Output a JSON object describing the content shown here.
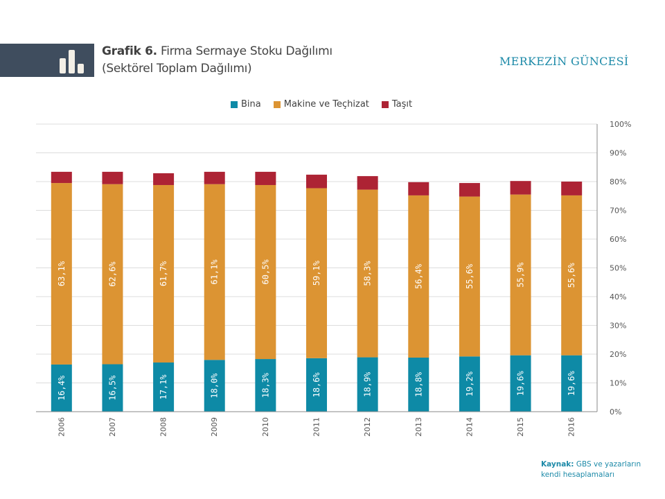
{
  "header": {
    "title_bold": "Grafik 6.",
    "title_rest": "Firma Sermaye Stoku Dağılımı",
    "subtitle": "(Sektörel Toplam Dağılımı)",
    "brand": "MERKEZİN GÜNCESİ",
    "icon": "bar-chart-icon"
  },
  "source": {
    "label": "Kaynak:",
    "text_line1": "GBS ve yazarların",
    "text_line2": "kendi hesaplamaları"
  },
  "chart_data": {
    "type": "bar",
    "stacked": true,
    "title": "Firma Sermaye Stoku Dağılımı (Sektörel Toplam Dağılımı)",
    "xlabel": "",
    "ylabel": "",
    "ylim": [
      0,
      100
    ],
    "y_ticks": [
      "0%",
      "10%",
      "20%",
      "30%",
      "40%",
      "50%",
      "60%",
      "70%",
      "80%",
      "90%",
      "100%"
    ],
    "y_axis_position": "right",
    "grid": true,
    "legend_position": "top",
    "categories": [
      "2006",
      "2007",
      "2008",
      "2009",
      "2010",
      "2011",
      "2012",
      "2013",
      "2014",
      "2015",
      "2016"
    ],
    "series": [
      {
        "name": "Bina",
        "color": "#0e8aa6",
        "values": [
          16.4,
          16.5,
          17.1,
          18.0,
          18.3,
          18.6,
          18.9,
          18.8,
          19.2,
          19.6,
          19.6
        ],
        "labels": [
          "16,4%",
          "16,5%",
          "17,1%",
          "18,0%",
          "18,3%",
          "18,6%",
          "18,9%",
          "18,8%",
          "19,2%",
          "19,6%",
          "19,6%"
        ]
      },
      {
        "name": "Makine ve Teçhizat",
        "color": "#dc9433",
        "values": [
          63.1,
          62.6,
          61.7,
          61.1,
          60.5,
          59.1,
          58.3,
          56.4,
          55.6,
          55.9,
          55.6
        ],
        "labels": [
          "63,1%",
          "62,6%",
          "61,7%",
          "61,1%",
          "60,5%",
          "59,1%",
          "58,3%",
          "56,4%",
          "55,6%",
          "55,9%",
          "55,6%"
        ]
      },
      {
        "name": "Taşıt",
        "color": "#ad2334",
        "values": [
          3.9,
          4.3,
          4.1,
          4.3,
          4.6,
          4.7,
          4.7,
          4.6,
          4.7,
          4.7,
          4.8
        ],
        "labels": []
      }
    ]
  }
}
